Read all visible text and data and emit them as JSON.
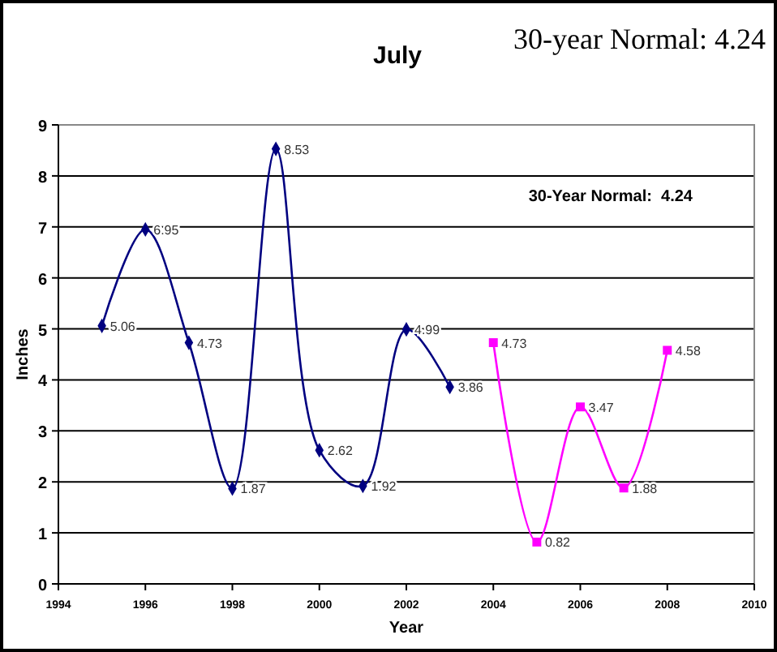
{
  "chart_data": {
    "type": "line",
    "title": "July",
    "xlabel": "Year",
    "ylabel": "Inches",
    "annotations": [
      "30-year Normal: 4.24",
      "30-Year Normal:  4.24"
    ],
    "xlim": [
      1994,
      2010
    ],
    "xticks": [
      1994,
      1996,
      1998,
      2000,
      2002,
      2004,
      2006,
      2008,
      2010
    ],
    "ylim": [
      0,
      9
    ],
    "yticks": [
      0,
      1,
      2,
      3,
      4,
      5,
      6,
      7,
      8,
      9
    ],
    "grid": "y",
    "data_labels": true,
    "series": [
      {
        "color": "#000080",
        "marker": "diamond",
        "x": [
          1995,
          1996,
          1997,
          1998,
          1999,
          2000,
          2001,
          2002,
          2003
        ],
        "values": [
          5.06,
          6.95,
          4.73,
          1.87,
          8.53,
          2.62,
          1.92,
          4.99,
          3.86
        ]
      },
      {
        "color": "#ff00ff",
        "marker": "square",
        "x": [
          2004,
          2005,
          2006,
          2007,
          2008
        ],
        "values": [
          4.73,
          0.82,
          3.47,
          1.88,
          4.58
        ]
      }
    ]
  }
}
